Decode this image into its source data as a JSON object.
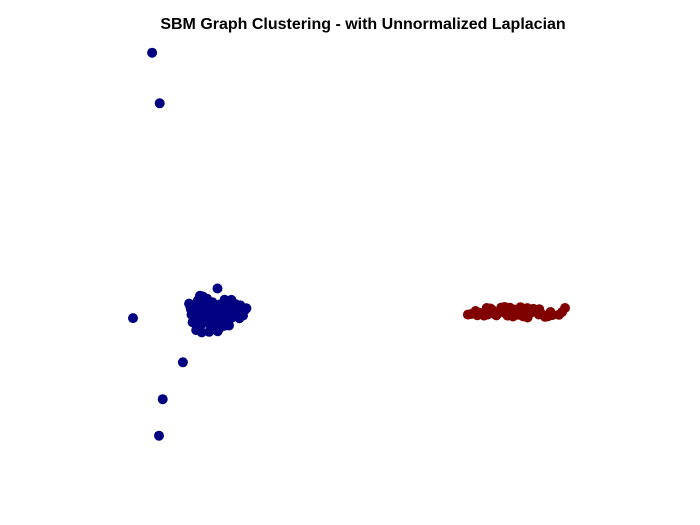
{
  "chart_data": {
    "type": "scatter",
    "title": "SBM Graph Clustering - with Unnormalized Laplacian",
    "xlabel": "",
    "ylabel": "",
    "axes_visible": false,
    "grid": false,
    "legend": "none",
    "xlim": [
      0,
      100
    ],
    "ylim": [
      0,
      100
    ],
    "series": [
      {
        "color": "#000080",
        "points": [
          [
            4.43,
            98.86
          ],
          [
            6.19,
            86.48
          ],
          [
            0.0,
            33.97
          ],
          [
            6.88,
            14.14
          ],
          [
            6.03,
            5.2
          ],
          [
            11.55,
            23.16
          ],
          [
            19.57,
            41.19
          ],
          [
            17.82,
            35.37
          ],
          [
            16.25,
            36.94
          ],
          [
            21.79,
            37.03
          ],
          [
            24.01,
            37.0
          ],
          [
            26.24,
            36.35
          ],
          [
            12.99,
            37.5
          ],
          [
            13.32,
            36.47
          ],
          [
            13.95,
            35.33
          ],
          [
            13.55,
            34.81
          ],
          [
            14.56,
            33.98
          ],
          [
            15.59,
            34.3
          ],
          [
            15.02,
            38.28
          ],
          [
            15.52,
            39.41
          ],
          [
            16.21,
            37.7
          ],
          [
            16.7,
            35.31
          ],
          [
            17.15,
            34.11
          ],
          [
            17.23,
            32.79
          ],
          [
            15.91,
            32.53
          ],
          [
            14.6,
            32.41
          ],
          [
            13.8,
            32.97
          ],
          [
            18.09,
            33.14
          ],
          [
            18.97,
            33.56
          ],
          [
            19.8,
            32.58
          ],
          [
            20.63,
            33.97
          ],
          [
            21.11,
            32.09
          ],
          [
            22.22,
            32.15
          ],
          [
            22.83,
            34.03
          ],
          [
            23.74,
            35.15
          ],
          [
            24.64,
            35.92
          ],
          [
            25.47,
            34.58
          ],
          [
            25.88,
            35.92
          ],
          [
            24.62,
            33.93
          ],
          [
            23.31,
            34.86
          ],
          [
            21.61,
            34.37
          ],
          [
            20.25,
            35.15
          ],
          [
            19.29,
            36.77
          ],
          [
            18.37,
            37.84
          ],
          [
            17.12,
            38.71
          ],
          [
            16.19,
            39.24
          ],
          [
            15.0,
            36.49
          ],
          [
            13.46,
            35.99
          ],
          [
            14.32,
            36.59
          ],
          [
            16.1,
            36.2
          ],
          [
            17.62,
            36.26
          ],
          [
            18.86,
            35.37
          ],
          [
            20.14,
            37.3
          ],
          [
            21.21,
            38.45
          ],
          [
            22.78,
            38.41
          ],
          [
            23.73,
            37.39
          ],
          [
            24.85,
            37.07
          ],
          [
            22.16,
            35.72
          ],
          [
            18.11,
            32.05
          ],
          [
            14.62,
            31.03
          ],
          [
            15.93,
            30.46
          ],
          [
            17.64,
            30.6
          ],
          [
            19.61,
            30.76
          ],
          [
            20.08,
            31.58
          ],
          [
            16.57,
            33.54
          ],
          [
            14.76,
            34.58
          ],
          [
            19.29,
            34.01
          ],
          [
            21.86,
            36.27
          ],
          [
            23.34,
            36.03
          ],
          [
            16.88,
            37.45
          ]
        ]
      },
      {
        "color": "#800000",
        "points": [
          [
            77.52,
            34.82
          ],
          [
            79.31,
            35.7
          ],
          [
            80.86,
            35.03
          ],
          [
            82.75,
            36.31
          ],
          [
            84.81,
            35.6
          ],
          [
            86.34,
            35.91
          ],
          [
            87.73,
            34.99
          ],
          [
            89.13,
            35.67
          ],
          [
            90.64,
            36.01
          ],
          [
            91.98,
            35.22
          ],
          [
            93.37,
            35.72
          ],
          [
            94.66,
            34.9
          ],
          [
            96.04,
            34.43
          ],
          [
            97.07,
            34.69
          ],
          [
            98.6,
            34.8
          ],
          [
            99.3,
            35.43
          ],
          [
            100.0,
            36.42
          ],
          [
            91.35,
            34.1
          ],
          [
            89.69,
            36.63
          ],
          [
            88.28,
            36.03
          ],
          [
            86.7,
            34.58
          ],
          [
            85.22,
            36.52
          ],
          [
            83.59,
            35.0
          ],
          [
            81.87,
            36.44
          ],
          [
            80.12,
            35.26
          ],
          [
            78.31,
            34.97
          ],
          [
            79.7,
            34.66
          ],
          [
            82.45,
            35.27
          ],
          [
            84.11,
            34.63
          ],
          [
            85.85,
            35.32
          ],
          [
            87.24,
            36.51
          ],
          [
            88.87,
            35.14
          ],
          [
            90.33,
            34.37
          ],
          [
            92.68,
            36.21
          ],
          [
            93.94,
            34.85
          ],
          [
            95.38,
            34.27
          ],
          [
            96.64,
            35.45
          ],
          [
            81.28,
            34.56
          ],
          [
            83.07,
            36.03
          ],
          [
            87.96,
            34.36
          ],
          [
            89.25,
            34.8
          ],
          [
            91.3,
            36.4
          ],
          [
            94.05,
            36.14
          ],
          [
            86.04,
            36.68
          ],
          [
            82.13,
            34.83
          ]
        ]
      }
    ]
  }
}
